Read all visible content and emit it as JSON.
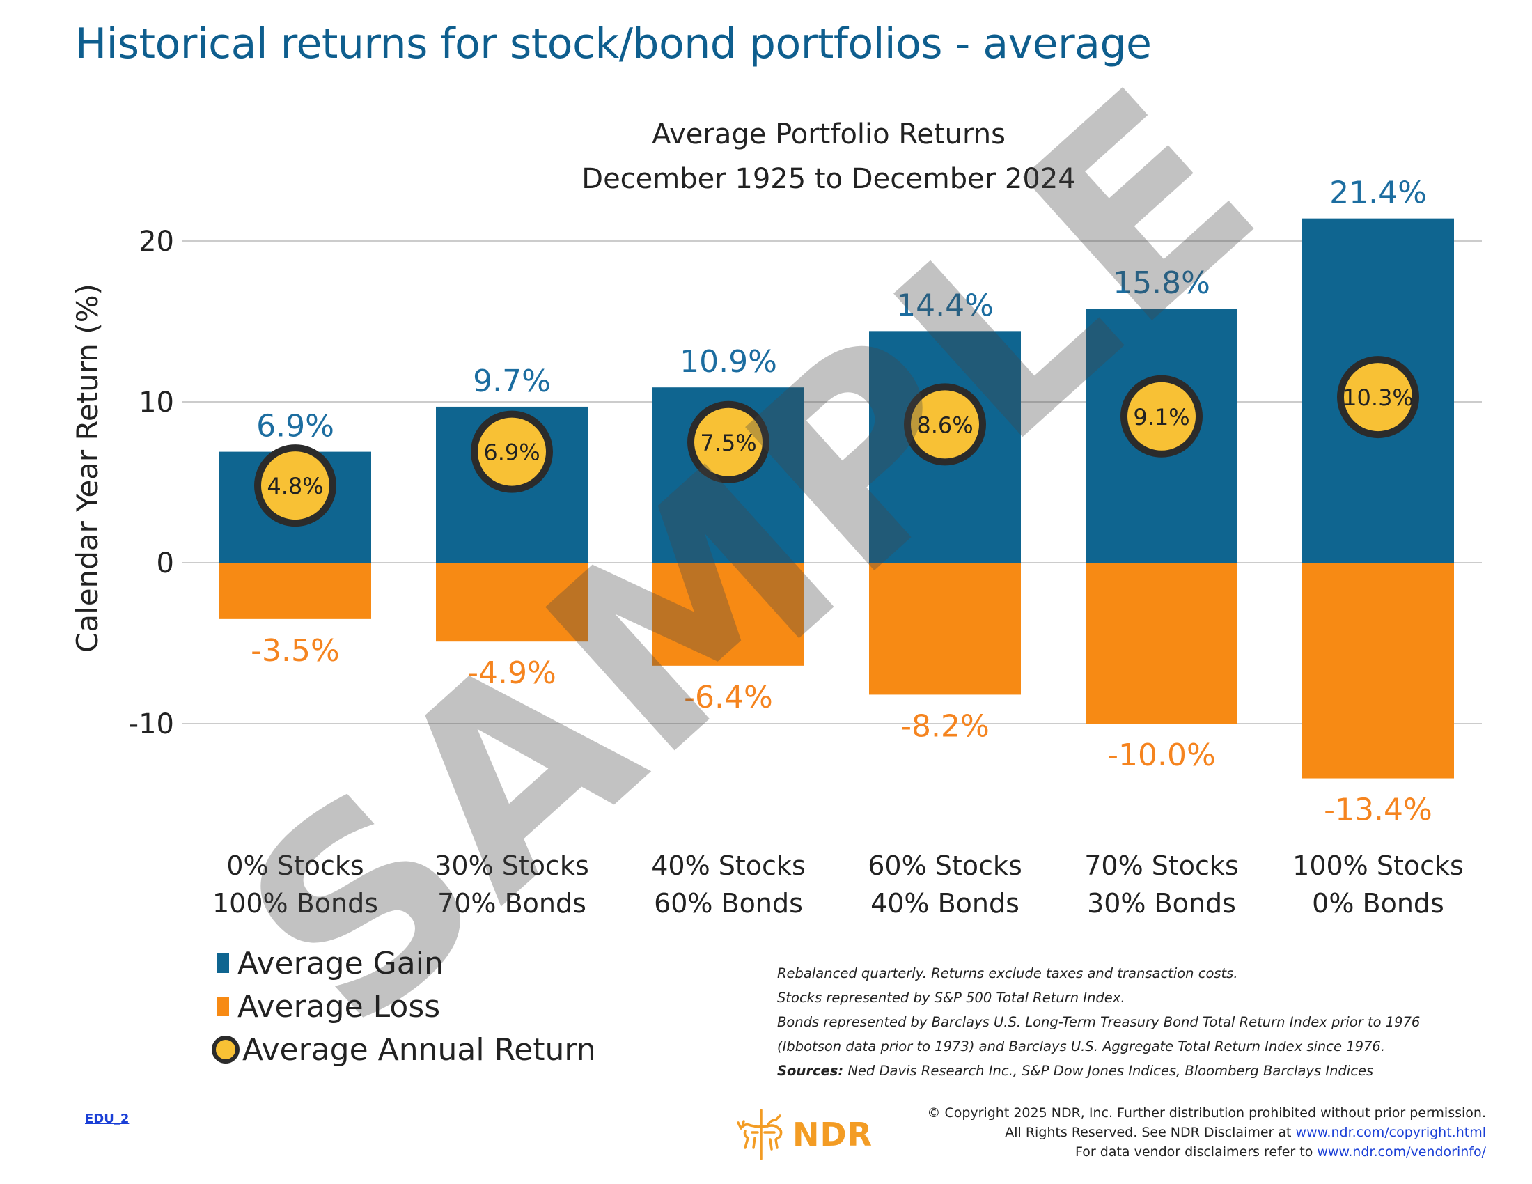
{
  "title": "Historical returns for stock/bond portfolios - average",
  "chart_data": {
    "type": "bar",
    "title": "Average Portfolio Returns",
    "subtitle": "December 1925 to December 2024",
    "ylabel": "Calendar Year Return (%)",
    "ylim": [
      -16,
      24
    ],
    "yticks": [
      20,
      10,
      0,
      -10
    ],
    "ytick_labels": [
      "20",
      "10",
      "0",
      "-10"
    ],
    "categories": [
      [
        "0% Stocks",
        "100% Bonds"
      ],
      [
        "30% Stocks",
        "70% Bonds"
      ],
      [
        "40% Stocks",
        "60% Bonds"
      ],
      [
        "60% Stocks",
        "40% Bonds"
      ],
      [
        "70% Stocks",
        "30% Bonds"
      ],
      [
        "100% Stocks",
        "0% Bonds"
      ]
    ],
    "series": [
      {
        "name": "Average Gain",
        "color": "#0f6590",
        "values": [
          6.9,
          9.7,
          10.9,
          14.4,
          15.8,
          21.4
        ],
        "labels": [
          "6.9%",
          "9.7%",
          "10.9%",
          "14.4%",
          "15.8%",
          "21.4%"
        ]
      },
      {
        "name": "Average Loss",
        "color": "#f78a14",
        "values": [
          -3.5,
          -4.9,
          -6.4,
          -8.2,
          -10.0,
          -13.4
        ],
        "labels": [
          "-3.5%",
          "-4.9%",
          "-6.4%",
          "-8.2%",
          "-10.0%",
          "-13.4%"
        ]
      },
      {
        "name": "Average Annual Return",
        "color": "#f8c135",
        "values": [
          4.8,
          6.9,
          7.5,
          8.6,
          9.1,
          10.3
        ],
        "labels": [
          "4.8%",
          "6.9%",
          "7.5%",
          "8.6%",
          "9.1%",
          "10.3%"
        ]
      }
    ],
    "grid": true
  },
  "watermark": "SAMPLE",
  "legend": {
    "gain": "Average Gain",
    "loss": "Average Loss",
    "annual": "Average Annual Return"
  },
  "notes": {
    "line1": "Rebalanced quarterly. Returns exclude taxes and transaction costs.",
    "line2": "Stocks represented by S&P 500 Total Return Index.",
    "line3": "Bonds represented by Barclays U.S. Long-Term Treasury Bond Total Return Index prior to 1976",
    "line4": "(Ibbotson data prior to 1973) and Barclays U.S. Aggregate Total Return Index since 1976.",
    "sources_label": "Sources:",
    "sources_text": "Ned Davis Research Inc., S&P Dow Jones Indices, Bloomberg Barclays Indices"
  },
  "footer": {
    "edu_link": "EDU_2",
    "logo_text": "NDR",
    "copyright_line1": "© Copyright 2025 NDR, Inc. Further distribution prohibited without prior permission.",
    "copyright_line2_prefix": "All Rights Reserved. See NDR Disclaimer at",
    "copyright_url1": "www.ndr.com/copyright.html",
    "copyright_line3_prefix": "For data vendor disclaimers refer to",
    "copyright_url2": "www.ndr.com/vendorinfo/"
  },
  "colors": {
    "title": "#0e5e8e",
    "gain": "#0f6590",
    "gain_label": "#1c6da0",
    "loss": "#f78a14",
    "loss_label": "#f5841f",
    "annual_fill": "#f8c135",
    "annual_border": "#2b2b2b",
    "grid": "#cccccc"
  }
}
